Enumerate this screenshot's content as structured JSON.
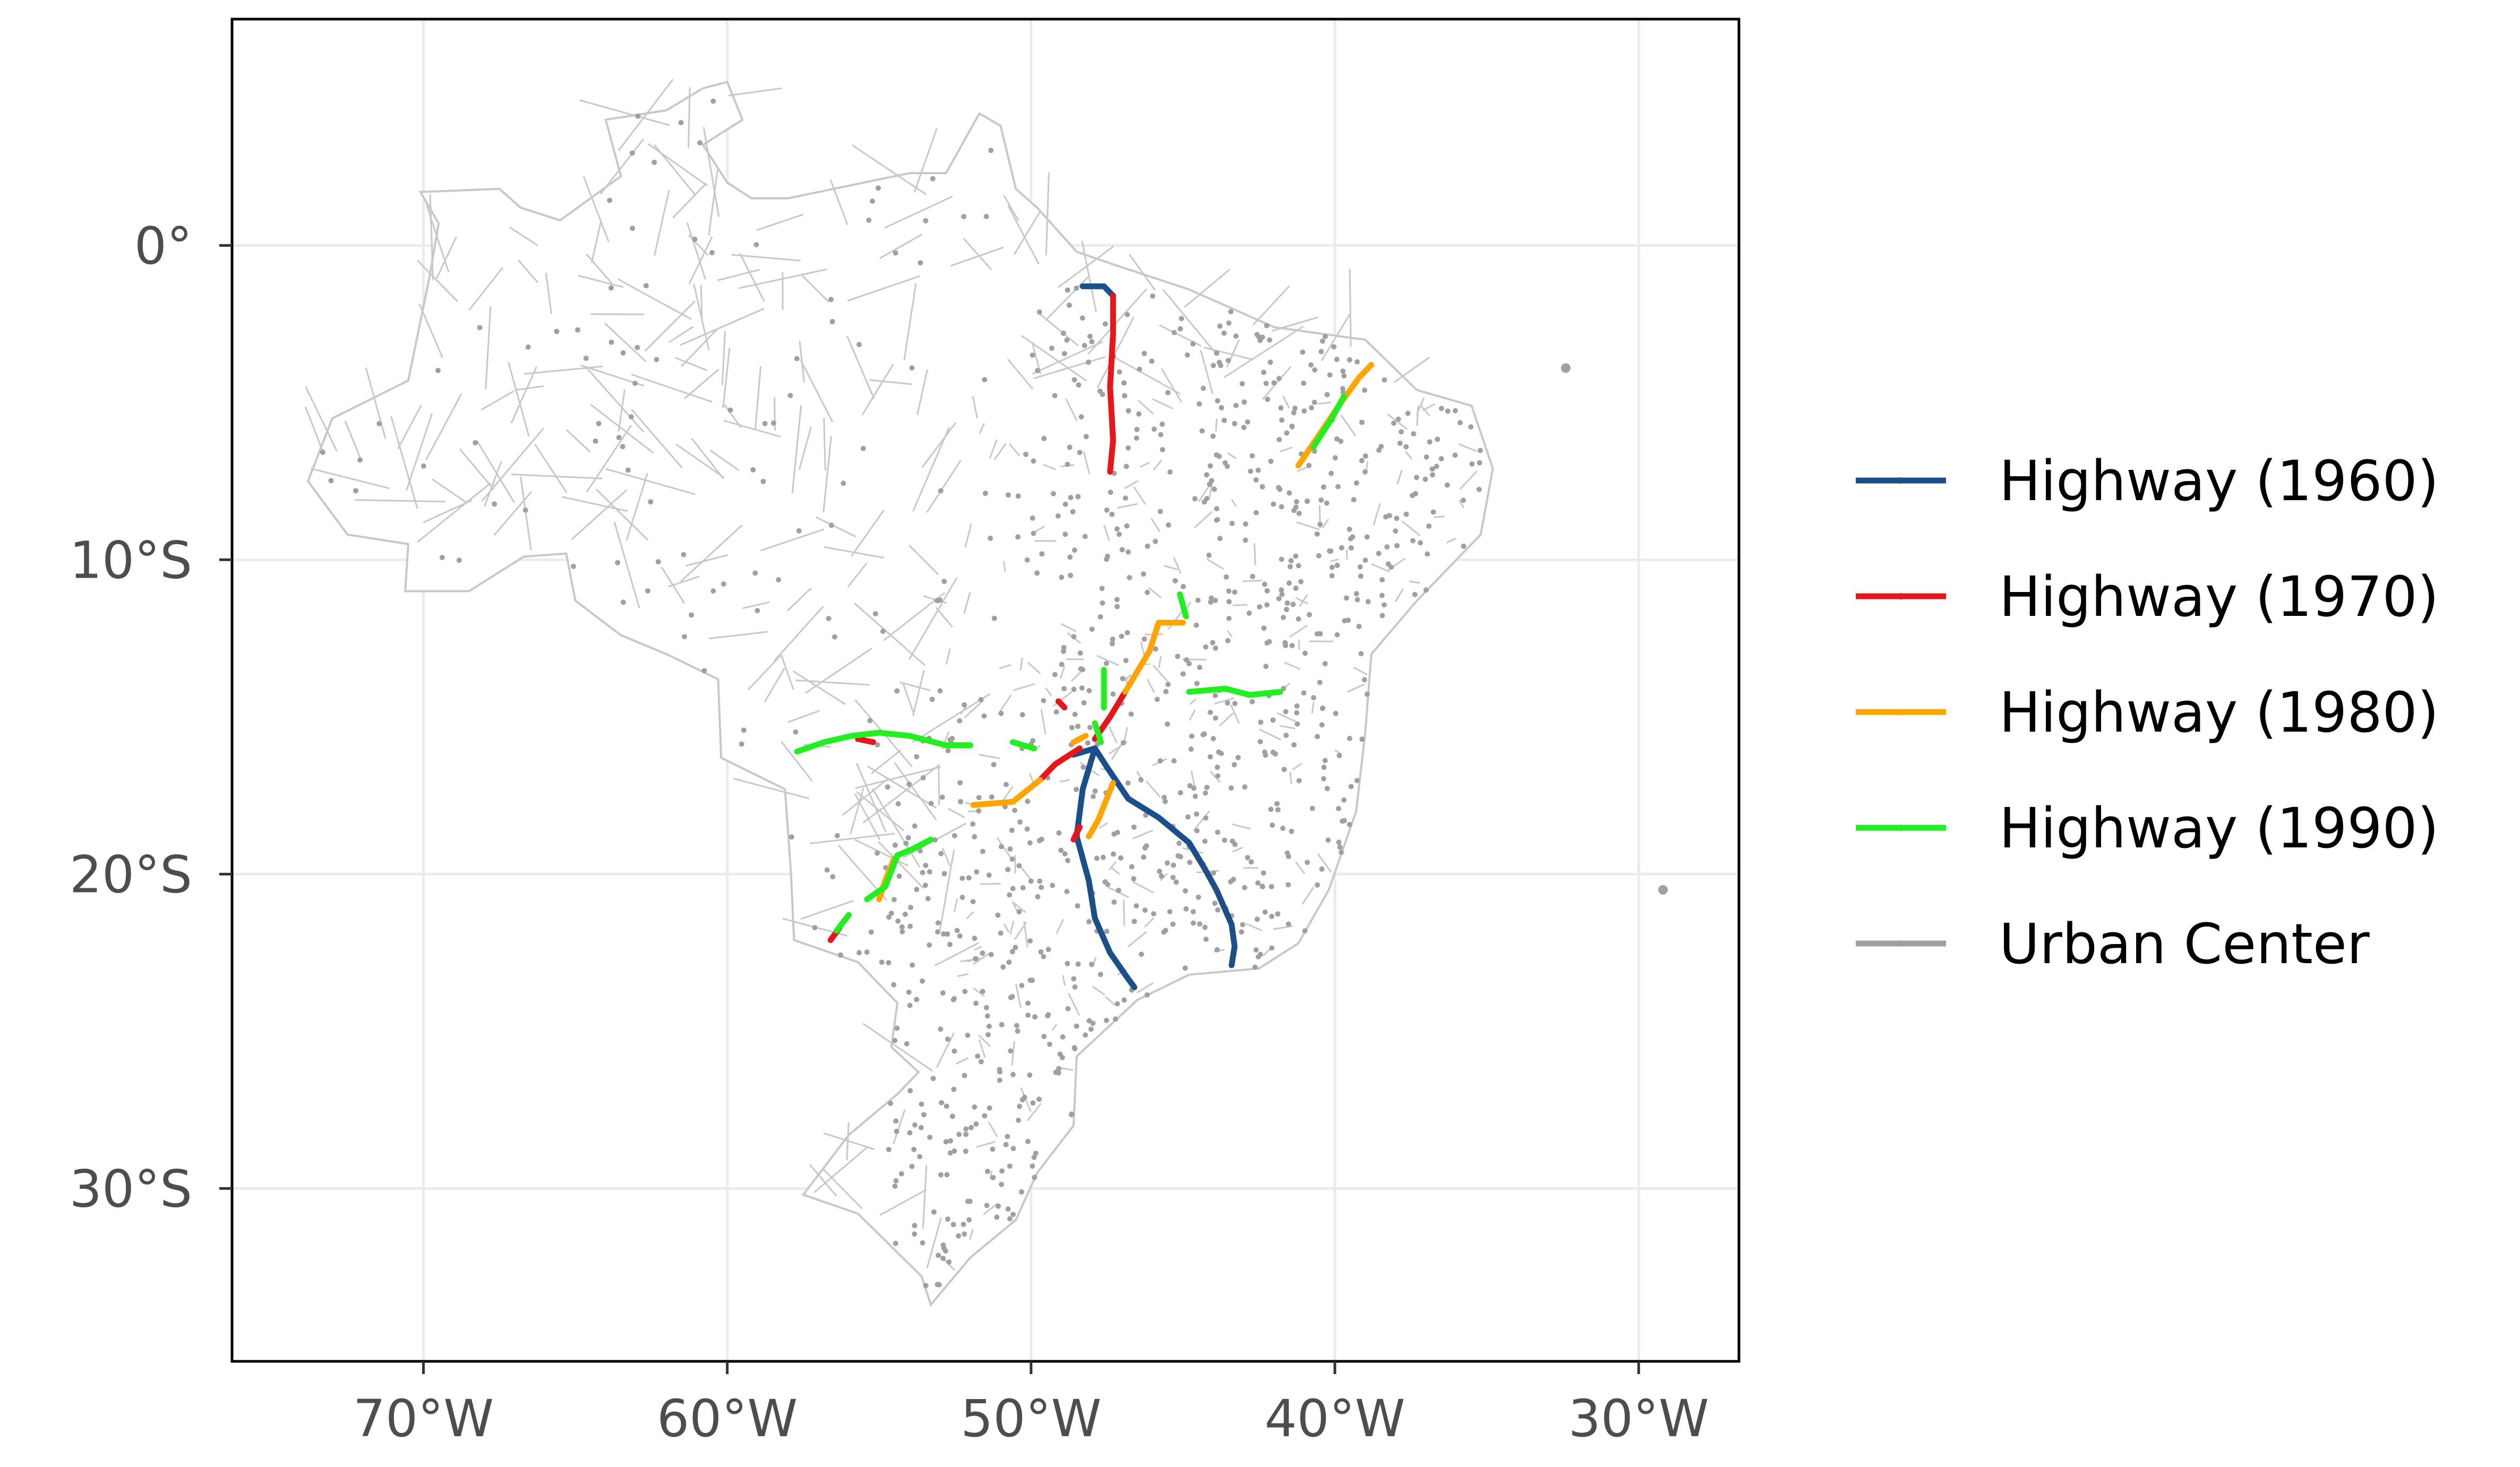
{
  "map": {
    "x_axis": {
      "min": -76.3,
      "max": -26.7,
      "ticks": [
        {
          "value": -70,
          "label": "70°W"
        },
        {
          "value": -60,
          "label": "60°W"
        },
        {
          "value": -50,
          "label": "50°W"
        },
        {
          "value": -40,
          "label": "40°W"
        },
        {
          "value": -30,
          "label": "30°W"
        }
      ]
    },
    "y_axis": {
      "min": -35.5,
      "max": 7.2,
      "ticks": [
        {
          "value": 0,
          "label": "0°"
        },
        {
          "value": -10,
          "label": "10°S"
        },
        {
          "value": -20,
          "label": "20°S"
        },
        {
          "value": -30,
          "label": "30°S"
        }
      ]
    },
    "grid": true,
    "legend": {
      "position": "right",
      "items": [
        {
          "label": "Highway (1960)",
          "color": "#1a4f8a"
        },
        {
          "label": "Highway (1970)",
          "color": "#e8151b"
        },
        {
          "label": "Highway (1980)",
          "color": "#ffa500"
        },
        {
          "label": "Highway (1990)",
          "color": "#22ee22"
        },
        {
          "label": "Urban Center",
          "color": "#a0a0a0"
        }
      ]
    },
    "colors": {
      "grid": "#ebebeb",
      "panel_border": "#000000",
      "boundary": "#c8c8c8",
      "urban": "#a0a0a0"
    }
  },
  "chart_data": {
    "type": "map",
    "region": "Brazil",
    "xlim": [
      -76.3,
      -26.7
    ],
    "ylim": [
      -35.5,
      7.2
    ],
    "country_outline": [
      [
        -60.0,
        5.2
      ],
      [
        -59.5,
        4.0
      ],
      [
        -60.8,
        3.2
      ],
      [
        -60.0,
        2.0
      ],
      [
        -59.2,
        1.5
      ],
      [
        -58.0,
        1.5
      ],
      [
        -56.0,
        1.9
      ],
      [
        -54.0,
        2.3
      ],
      [
        -52.8,
        2.3
      ],
      [
        -51.7,
        4.2
      ],
      [
        -51.0,
        3.8
      ],
      [
        -50.5,
        1.8
      ],
      [
        -49.8,
        1.2
      ],
      [
        -48.5,
        -0.2
      ],
      [
        -47.3,
        -0.6
      ],
      [
        -44.8,
        -1.4
      ],
      [
        -42.0,
        -2.6
      ],
      [
        -39.0,
        -3.0
      ],
      [
        -37.3,
        -4.6
      ],
      [
        -35.5,
        -5.1
      ],
      [
        -34.8,
        -7.1
      ],
      [
        -35.2,
        -9.2
      ],
      [
        -37.3,
        -11.3
      ],
      [
        -38.8,
        -13.0
      ],
      [
        -39.0,
        -15.5
      ],
      [
        -39.3,
        -18.0
      ],
      [
        -40.2,
        -20.5
      ],
      [
        -41.2,
        -22.2
      ],
      [
        -42.5,
        -23.0
      ],
      [
        -44.8,
        -23.2
      ],
      [
        -46.5,
        -24.0
      ],
      [
        -48.5,
        -25.8
      ],
      [
        -48.6,
        -28.0
      ],
      [
        -49.8,
        -29.5
      ],
      [
        -50.5,
        -31.0
      ],
      [
        -52.0,
        -32.2
      ],
      [
        -53.3,
        -33.7
      ],
      [
        -53.6,
        -32.8
      ],
      [
        -55.7,
        -30.8
      ],
      [
        -57.5,
        -30.2
      ],
      [
        -56.0,
        -28.3
      ],
      [
        -54.4,
        -27.0
      ],
      [
        -53.7,
        -26.3
      ],
      [
        -54.6,
        -25.5
      ],
      [
        -54.4,
        -24.1
      ],
      [
        -55.7,
        -22.8
      ],
      [
        -57.8,
        -22.1
      ],
      [
        -57.9,
        -20.0
      ],
      [
        -58.1,
        -17.3
      ],
      [
        -60.2,
        -16.3
      ],
      [
        -60.3,
        -13.8
      ],
      [
        -62.0,
        -13.0
      ],
      [
        -63.5,
        -12.4
      ],
      [
        -65.0,
        -11.3
      ],
      [
        -65.3,
        -9.8
      ],
      [
        -66.7,
        -9.9
      ],
      [
        -68.5,
        -11.0
      ],
      [
        -70.6,
        -11.0
      ],
      [
        -70.5,
        -9.5
      ],
      [
        -72.5,
        -9.2
      ],
      [
        -73.8,
        -7.5
      ],
      [
        -73.0,
        -5.5
      ],
      [
        -70.5,
        -4.3
      ],
      [
        -69.8,
        -1.0
      ],
      [
        -69.5,
        0.7
      ],
      [
        -70.1,
        1.7
      ],
      [
        -67.5,
        1.8
      ],
      [
        -66.8,
        1.2
      ],
      [
        -65.5,
        0.8
      ],
      [
        -63.5,
        2.2
      ],
      [
        -64.0,
        4.0
      ],
      [
        -62.0,
        4.3
      ],
      [
        -60.8,
        5.0
      ],
      [
        -60.0,
        5.2
      ]
    ],
    "series": [
      {
        "name": "Highway (1960)",
        "color": "#1a4f8a",
        "lines": [
          [
            [
              -48.3,
              -1.3
            ],
            [
              -47.6,
              -1.3
            ],
            [
              -47.3,
              -1.6
            ]
          ],
          [
            [
              -47.9,
              -16.0
            ],
            [
              -47.5,
              -16.6
            ],
            [
              -46.8,
              -17.6
            ],
            [
              -45.8,
              -18.2
            ],
            [
              -44.8,
              -19.0
            ],
            [
              -44.3,
              -19.8
            ],
            [
              -43.9,
              -20.5
            ],
            [
              -43.4,
              -21.6
            ],
            [
              -43.3,
              -22.3
            ],
            [
              -43.4,
              -22.9
            ]
          ],
          [
            [
              -47.9,
              -16.0
            ],
            [
              -48.3,
              -17.3
            ],
            [
              -48.5,
              -18.8
            ],
            [
              -48.1,
              -20.2
            ],
            [
              -47.9,
              -21.4
            ],
            [
              -47.4,
              -22.5
            ],
            [
              -46.9,
              -23.2
            ],
            [
              -46.6,
              -23.6
            ]
          ],
          [
            [
              -48.6,
              -16.2
            ],
            [
              -47.9,
              -16.0
            ]
          ]
        ]
      },
      {
        "name": "Highway (1970)",
        "color": "#e8151b",
        "lines": [
          [
            [
              -47.3,
              -1.6
            ],
            [
              -47.3,
              -2.8
            ],
            [
              -47.4,
              -4.5
            ],
            [
              -47.3,
              -6.2
            ],
            [
              -47.4,
              -7.2
            ]
          ],
          [
            [
              -48.4,
              -16.0
            ],
            [
              -49.2,
              -16.5
            ],
            [
              -49.7,
              -17.0
            ]
          ],
          [
            [
              -47.9,
              -15.7
            ],
            [
              -47.4,
              -15.0
            ],
            [
              -46.9,
              -14.2
            ]
          ],
          [
            [
              -56.3,
              -21.7
            ],
            [
              -56.6,
              -22.1
            ]
          ],
          [
            [
              -55.7,
              -15.7
            ],
            [
              -55.2,
              -15.8
            ]
          ],
          [
            [
              -49.1,
              -14.5
            ],
            [
              -48.9,
              -14.7
            ]
          ],
          [
            [
              -48.6,
              -18.9
            ],
            [
              -48.4,
              -18.5
            ]
          ]
        ]
      },
      {
        "name": "Highway (1980)",
        "color": "#ffa500",
        "lines": [
          [
            [
              -41.2,
              -7.0
            ],
            [
              -40.5,
              -6.0
            ],
            [
              -39.8,
              -5.0
            ],
            [
              -39.2,
              -4.2
            ],
            [
              -38.8,
              -3.8
            ]
          ],
          [
            [
              -46.9,
              -14.2
            ],
            [
              -46.1,
              -12.9
            ],
            [
              -45.8,
              -12.0
            ],
            [
              -45.0,
              -12.0
            ]
          ],
          [
            [
              -49.7,
              -17.0
            ],
            [
              -50.6,
              -17.7
            ],
            [
              -51.9,
              -17.8
            ]
          ],
          [
            [
              -47.3,
              -17.1
            ],
            [
              -47.8,
              -18.3
            ],
            [
              -48.1,
              -18.8
            ]
          ],
          [
            [
              -54.5,
              -19.5
            ],
            [
              -54.8,
              -20.2
            ],
            [
              -55.0,
              -20.8
            ]
          ],
          [
            [
              -48.6,
              -15.8
            ],
            [
              -48.2,
              -15.6
            ]
          ]
        ]
      },
      {
        "name": "Highway (1990)",
        "color": "#22ee22",
        "lines": [
          [
            [
              -40.7,
              -6.4
            ],
            [
              -40.1,
              -5.5
            ],
            [
              -39.7,
              -4.8
            ]
          ],
          [
            [
              -57.7,
              -16.1
            ],
            [
              -56.8,
              -15.8
            ],
            [
              -55.9,
              -15.6
            ],
            [
              -55.0,
              -15.5
            ],
            [
              -54.0,
              -15.6
            ],
            [
              -52.8,
              -15.9
            ],
            [
              -52.0,
              -15.9
            ]
          ],
          [
            [
              -55.4,
              -20.8
            ],
            [
              -54.8,
              -20.4
            ],
            [
              -54.4,
              -19.4
            ],
            [
              -53.9,
              -19.2
            ],
            [
              -53.3,
              -18.9
            ]
          ],
          [
            [
              -44.8,
              -14.2
            ],
            [
              -43.6,
              -14.1
            ],
            [
              -42.8,
              -14.3
            ],
            [
              -41.8,
              -14.2
            ]
          ],
          [
            [
              -47.6,
              -13.5
            ],
            [
              -47.6,
              -14.7
            ]
          ],
          [
            [
              -47.9,
              -15.2
            ],
            [
              -47.7,
              -15.8
            ]
          ],
          [
            [
              -45.1,
              -11.1
            ],
            [
              -44.9,
              -11.8
            ]
          ],
          [
            [
              -50.6,
              -15.8
            ],
            [
              -49.9,
              -16.0
            ]
          ],
          [
            [
              -56.4,
              -21.8
            ],
            [
              -56.0,
              -21.3
            ]
          ]
        ]
      }
    ],
    "urban_centers": {
      "name": "Urban Center",
      "color": "#a0a0a0",
      "outliers": [
        [
          -32.4,
          -3.9
        ],
        [
          -29.2,
          -20.5
        ]
      ]
    }
  }
}
